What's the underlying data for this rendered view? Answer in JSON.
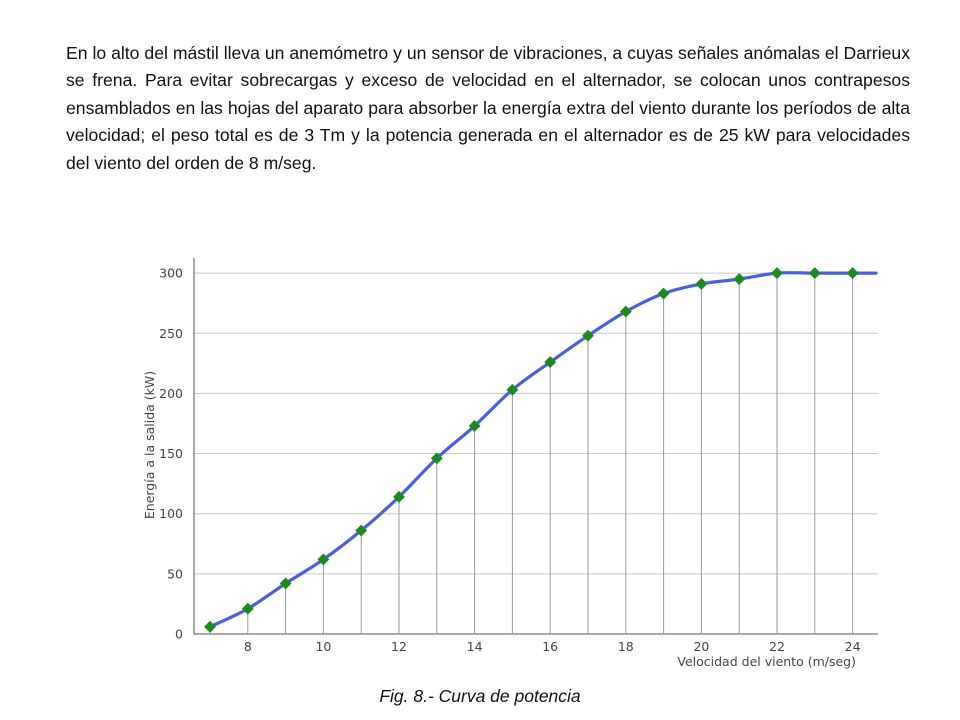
{
  "paragraph": "En lo alto del mástil lleva un anemómetro y un sensor de vibraciones, a cuyas señales anómalas el Darrieux se frena. Para evitar sobrecargas y exceso de velocidad en el alternador, se colocan unos contrapesos ensamblados en las hojas del aparato para absorber la energía extra del viento durante los períodos de alta velocidad; el peso total es de 3 Tm y la potencia generada en el alternador es de 25 kW para velocidades del viento del orden de 8 m/seg.",
  "caption": "Fig. 8.- Curva de potencia",
  "colors": {
    "line": "#4a5fe0",
    "marker": "#1e8a1e",
    "grid": "#c8c8c8",
    "droplines": "#9a9a9a",
    "axis": "#555555"
  },
  "chart_data": {
    "type": "line",
    "title": "",
    "xlabel": "Velocidad del viento (m/seg)",
    "ylabel": "Energía a la salida (kW)",
    "xlim": [
      6.5,
      24.4
    ],
    "ylim": [
      0,
      310
    ],
    "xticks": [
      8,
      10,
      12,
      14,
      16,
      18,
      20,
      22,
      24
    ],
    "yticks": [
      0,
      50,
      100,
      150,
      200,
      250,
      300
    ],
    "grid": "horizontal",
    "droplines": true,
    "series": [
      {
        "x": [
          7,
          8,
          9,
          10,
          11,
          12,
          13,
          14,
          15,
          16,
          17,
          18,
          19,
          20,
          21,
          22,
          23,
          24
        ],
        "values": [
          6,
          21,
          42,
          62,
          86,
          114,
          146,
          173,
          203,
          226,
          248,
          268,
          283,
          291,
          295,
          300,
          300,
          300
        ]
      }
    ]
  }
}
